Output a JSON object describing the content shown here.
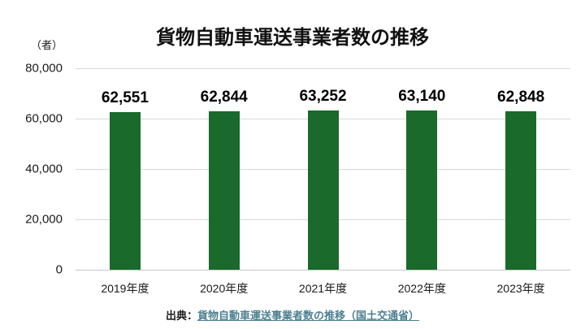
{
  "chart_data": {
    "type": "bar",
    "title": "貨物自動車運送事業者数の推移",
    "unit_label": "（者）",
    "categories": [
      "2019年度",
      "2020年度",
      "2021年度",
      "2022年度",
      "2023年度"
    ],
    "values": [
      62551,
      62844,
      63252,
      63140,
      62848
    ],
    "value_labels": [
      "62,551",
      "62,844",
      "63,252",
      "63,140",
      "62,848"
    ],
    "xlabel": "",
    "ylabel": "（者）",
    "ylim": [
      0,
      80000
    ],
    "yticks": [
      {
        "value": 0,
        "label": "0"
      },
      {
        "value": 20000,
        "label": "20,000"
      },
      {
        "value": 40000,
        "label": "40,000"
      },
      {
        "value": 60000,
        "label": "60,000"
      },
      {
        "value": 80000,
        "label": "80,000"
      }
    ],
    "grid": true,
    "legend": "none",
    "bar_color": "#196a2b"
  },
  "source": {
    "prefix": "出典：",
    "link_text": "貨物自動車運送事業者数の推移（国土交通省）"
  },
  "colors": {
    "bar": "#196a2b",
    "gridline": "#d9d9d9",
    "axis_line": "#c6c6c6",
    "text": "#1a1a1a",
    "link": "#4d7f8f",
    "background": "#ffffff"
  }
}
